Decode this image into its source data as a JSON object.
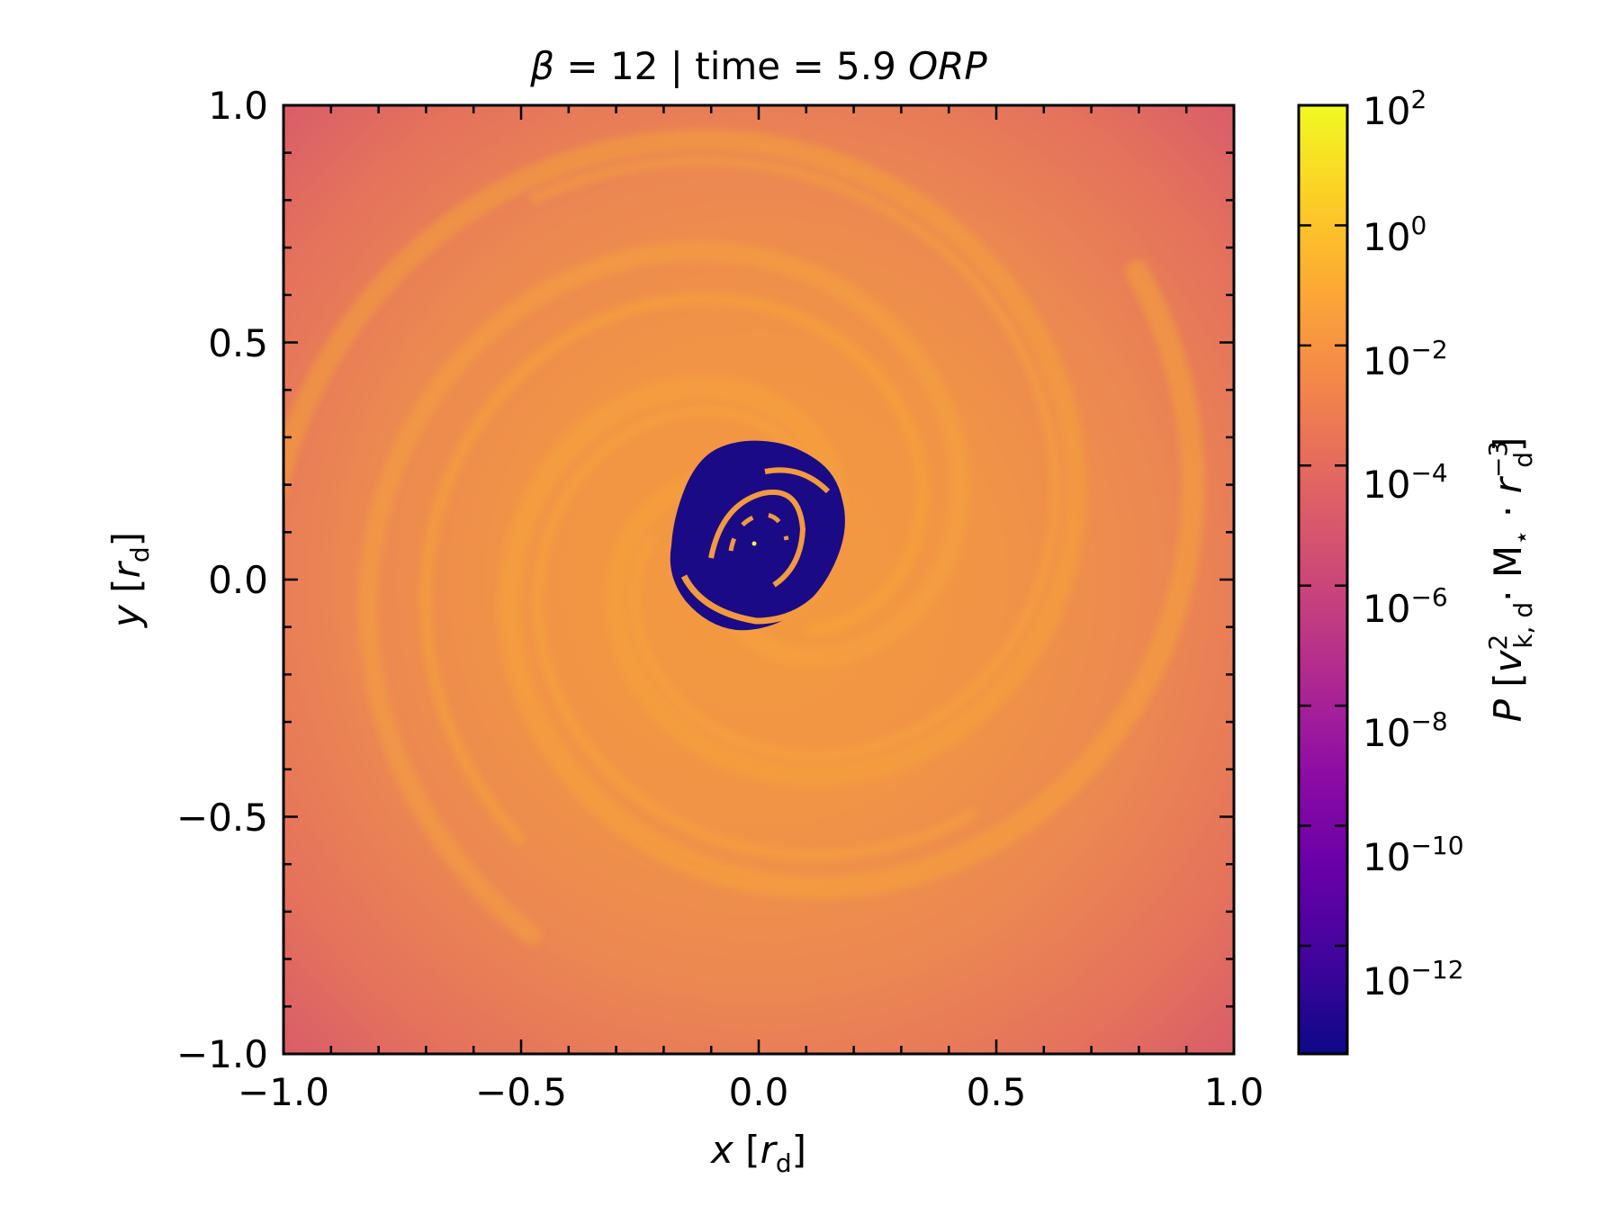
{
  "chart_data": {
    "type": "heatmap",
    "title": {
      "beta_symbol": "β",
      "beta_text": " = 12 | time = 5.9 ",
      "unit": "ORP"
    },
    "xlabel": {
      "var": "x",
      "open": " [",
      "unit": "r",
      "sub": "d",
      "close": "]"
    },
    "ylabel": {
      "var": "y",
      "open": " [",
      "unit": "r",
      "sub": "d",
      "close": "]"
    },
    "xlim": [
      -1.0,
      1.0
    ],
    "ylim": [
      -1.0,
      1.0
    ],
    "xticks": [
      "−1.0",
      "−0.5",
      "0.0",
      "0.5",
      "1.0"
    ],
    "yticks": [
      "−1.0",
      "−0.5",
      "0.0",
      "0.5",
      "1.0"
    ],
    "colorbar": {
      "label": {
        "var": "P",
        "open": " [",
        "v": "v",
        "v_sup": "2",
        "v_sub": "k, d",
        "mid": "· M",
        "m_sub": "⋆",
        "dots": " · ",
        "r": "r",
        "r_sup": "−3",
        "r_sub": "d",
        "close": "]"
      },
      "scale": "log",
      "colormap": "plasma",
      "range_exp": [
        -13.8,
        2.0
      ],
      "tick_exponents": [
        2,
        0,
        -2,
        -4,
        -6,
        -8,
        -10,
        -12
      ],
      "tick_labels": [
        {
          "base": "10",
          "exp": "2"
        },
        {
          "base": "10",
          "exp": "0"
        },
        {
          "base": "10",
          "exp": "−2"
        },
        {
          "base": "10",
          "exp": "−4"
        },
        {
          "base": "10",
          "exp": "−6"
        },
        {
          "base": "10",
          "exp": "−8"
        },
        {
          "base": "10",
          "exp": "−10"
        },
        {
          "base": "10",
          "exp": "−12"
        }
      ]
    },
    "field_description_values": {
      "outer_corner_log10_P": -4.5,
      "spiral_arm_log10_P": -1.5,
      "inner_cavity_log10_P": -13.8,
      "cavity_radius": 0.2
    },
    "colors": {
      "cavity": "#1a0a86",
      "arm": "#f4a03a",
      "disk": "#ec8752",
      "corner": "#d85b6a",
      "cbar_stops": [
        "#0d0887",
        "#41049d",
        "#6a00a8",
        "#8f0da4",
        "#b12a90",
        "#cc4778",
        "#e16462",
        "#f2844b",
        "#fca636",
        "#fcce25",
        "#f0f921"
      ]
    }
  }
}
